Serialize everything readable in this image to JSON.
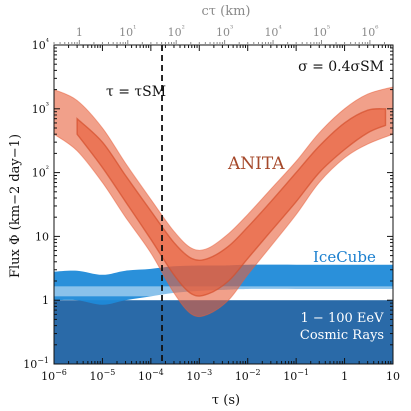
{
  "chart_data": {
    "type": "area",
    "x_axis": {
      "label": "τ (s)",
      "scale": "log",
      "range": [
        1e-06,
        10
      ],
      "ticks": [
        {
          "value": 1e-06,
          "label": "10−6"
        },
        {
          "value": 1e-05,
          "label": "10−5"
        },
        {
          "value": 0.0001,
          "label": "10−4"
        },
        {
          "value": 0.001,
          "label": "10−3"
        },
        {
          "value": 0.01,
          "label": "10−2"
        },
        {
          "value": 0.1,
          "label": "10−1"
        },
        {
          "value": 1,
          "label": "1"
        },
        {
          "value": 10,
          "label": "10"
        }
      ]
    },
    "y_axis": {
      "label": "Flux Φ (km−2 day−1)",
      "scale": "log",
      "range": [
        0.1,
        10000
      ],
      "ticks": [
        {
          "value": 0.1,
          "label": "10−1"
        },
        {
          "value": 1,
          "label": "1"
        },
        {
          "value": 10,
          "label": "10"
        },
        {
          "value": 100,
          "label": "10²"
        },
        {
          "value": 1000,
          "label": "10³"
        },
        {
          "value": 10000,
          "label": "10⁴"
        }
      ]
    },
    "top_axis": {
      "label": "cτ (km)",
      "scale": "log",
      "ticks": [
        {
          "value": 1,
          "label": "1"
        },
        {
          "value": 10,
          "label": "10¹"
        },
        {
          "value": 100,
          "label": "10²"
        },
        {
          "value": 1000,
          "label": "10³"
        },
        {
          "value": 10000,
          "label": "10⁴"
        },
        {
          "value": 100000,
          "label": "10⁵"
        },
        {
          "value": 1000000,
          "label": "10⁶"
        }
      ]
    },
    "annotations": {
      "sigma": "σ = 0.4σSM",
      "tau_line_label": "τ = τSM",
      "tau_sm": 0.00017
    },
    "series": [
      {
        "name": "ANITA",
        "color": "#e8603c",
        "outer_band": {
          "x": [
            1e-06,
            3e-06,
            1e-05,
            3e-05,
            0.0001,
            0.0003,
            0.0007,
            0.0015,
            0.004,
            0.01,
            0.03,
            0.1,
            0.3,
            1,
            3,
            10
          ],
          "upper": [
            2000,
            1350,
            500,
            140,
            38,
            12,
            6.5,
            6.5,
            11,
            22,
            55,
            150,
            420,
            1000,
            1700,
            2200
          ],
          "lower": [
            400,
            220,
            70,
            20,
            5.5,
            1.3,
            0.6,
            0.6,
            1.0,
            2.5,
            7,
            22,
            70,
            170,
            280,
            400
          ]
        },
        "inner_band": {
          "x": [
            3e-06,
            1e-05,
            3e-05,
            0.0001,
            0.0003,
            0.0007,
            0.0015,
            0.004,
            0.01,
            0.03,
            0.1,
            0.3,
            1,
            3,
            7
          ],
          "upper": [
            700,
            300,
            90,
            25,
            8,
            4.5,
            4.5,
            7,
            14,
            35,
            100,
            260,
            600,
            950,
            1000
          ],
          "lower": [
            400,
            120,
            35,
            9,
            2.5,
            1.25,
            1.25,
            2,
            4.5,
            12,
            35,
            100,
            230,
            420,
            550
          ]
        }
      },
      {
        "name": "IceCube",
        "color": "#1f8ad8",
        "band": {
          "x": [
            1e-06,
            3e-06,
            1e-05,
            3e-05,
            0.0001,
            0.0003,
            0.001,
            0.003,
            0.01,
            0.1,
            1,
            10
          ],
          "upper": [
            2.8,
            2.9,
            2.5,
            2.9,
            3.1,
            3.4,
            3.5,
            3.5,
            3.6,
            3.6,
            3.6,
            3.6
          ],
          "lower": [
            1.0,
            1.0,
            0.85,
            1.0,
            1.15,
            1.3,
            1.4,
            1.45,
            1.5,
            1.5,
            1.5,
            1.5
          ]
        }
      },
      {
        "name": "1 − 100 EeV Cosmic Rays",
        "color": "#2a6aa8",
        "band": {
          "lower": 0.1,
          "upper": 1.0,
          "light_strip": [
            1.15,
            1.65
          ]
        }
      }
    ]
  }
}
